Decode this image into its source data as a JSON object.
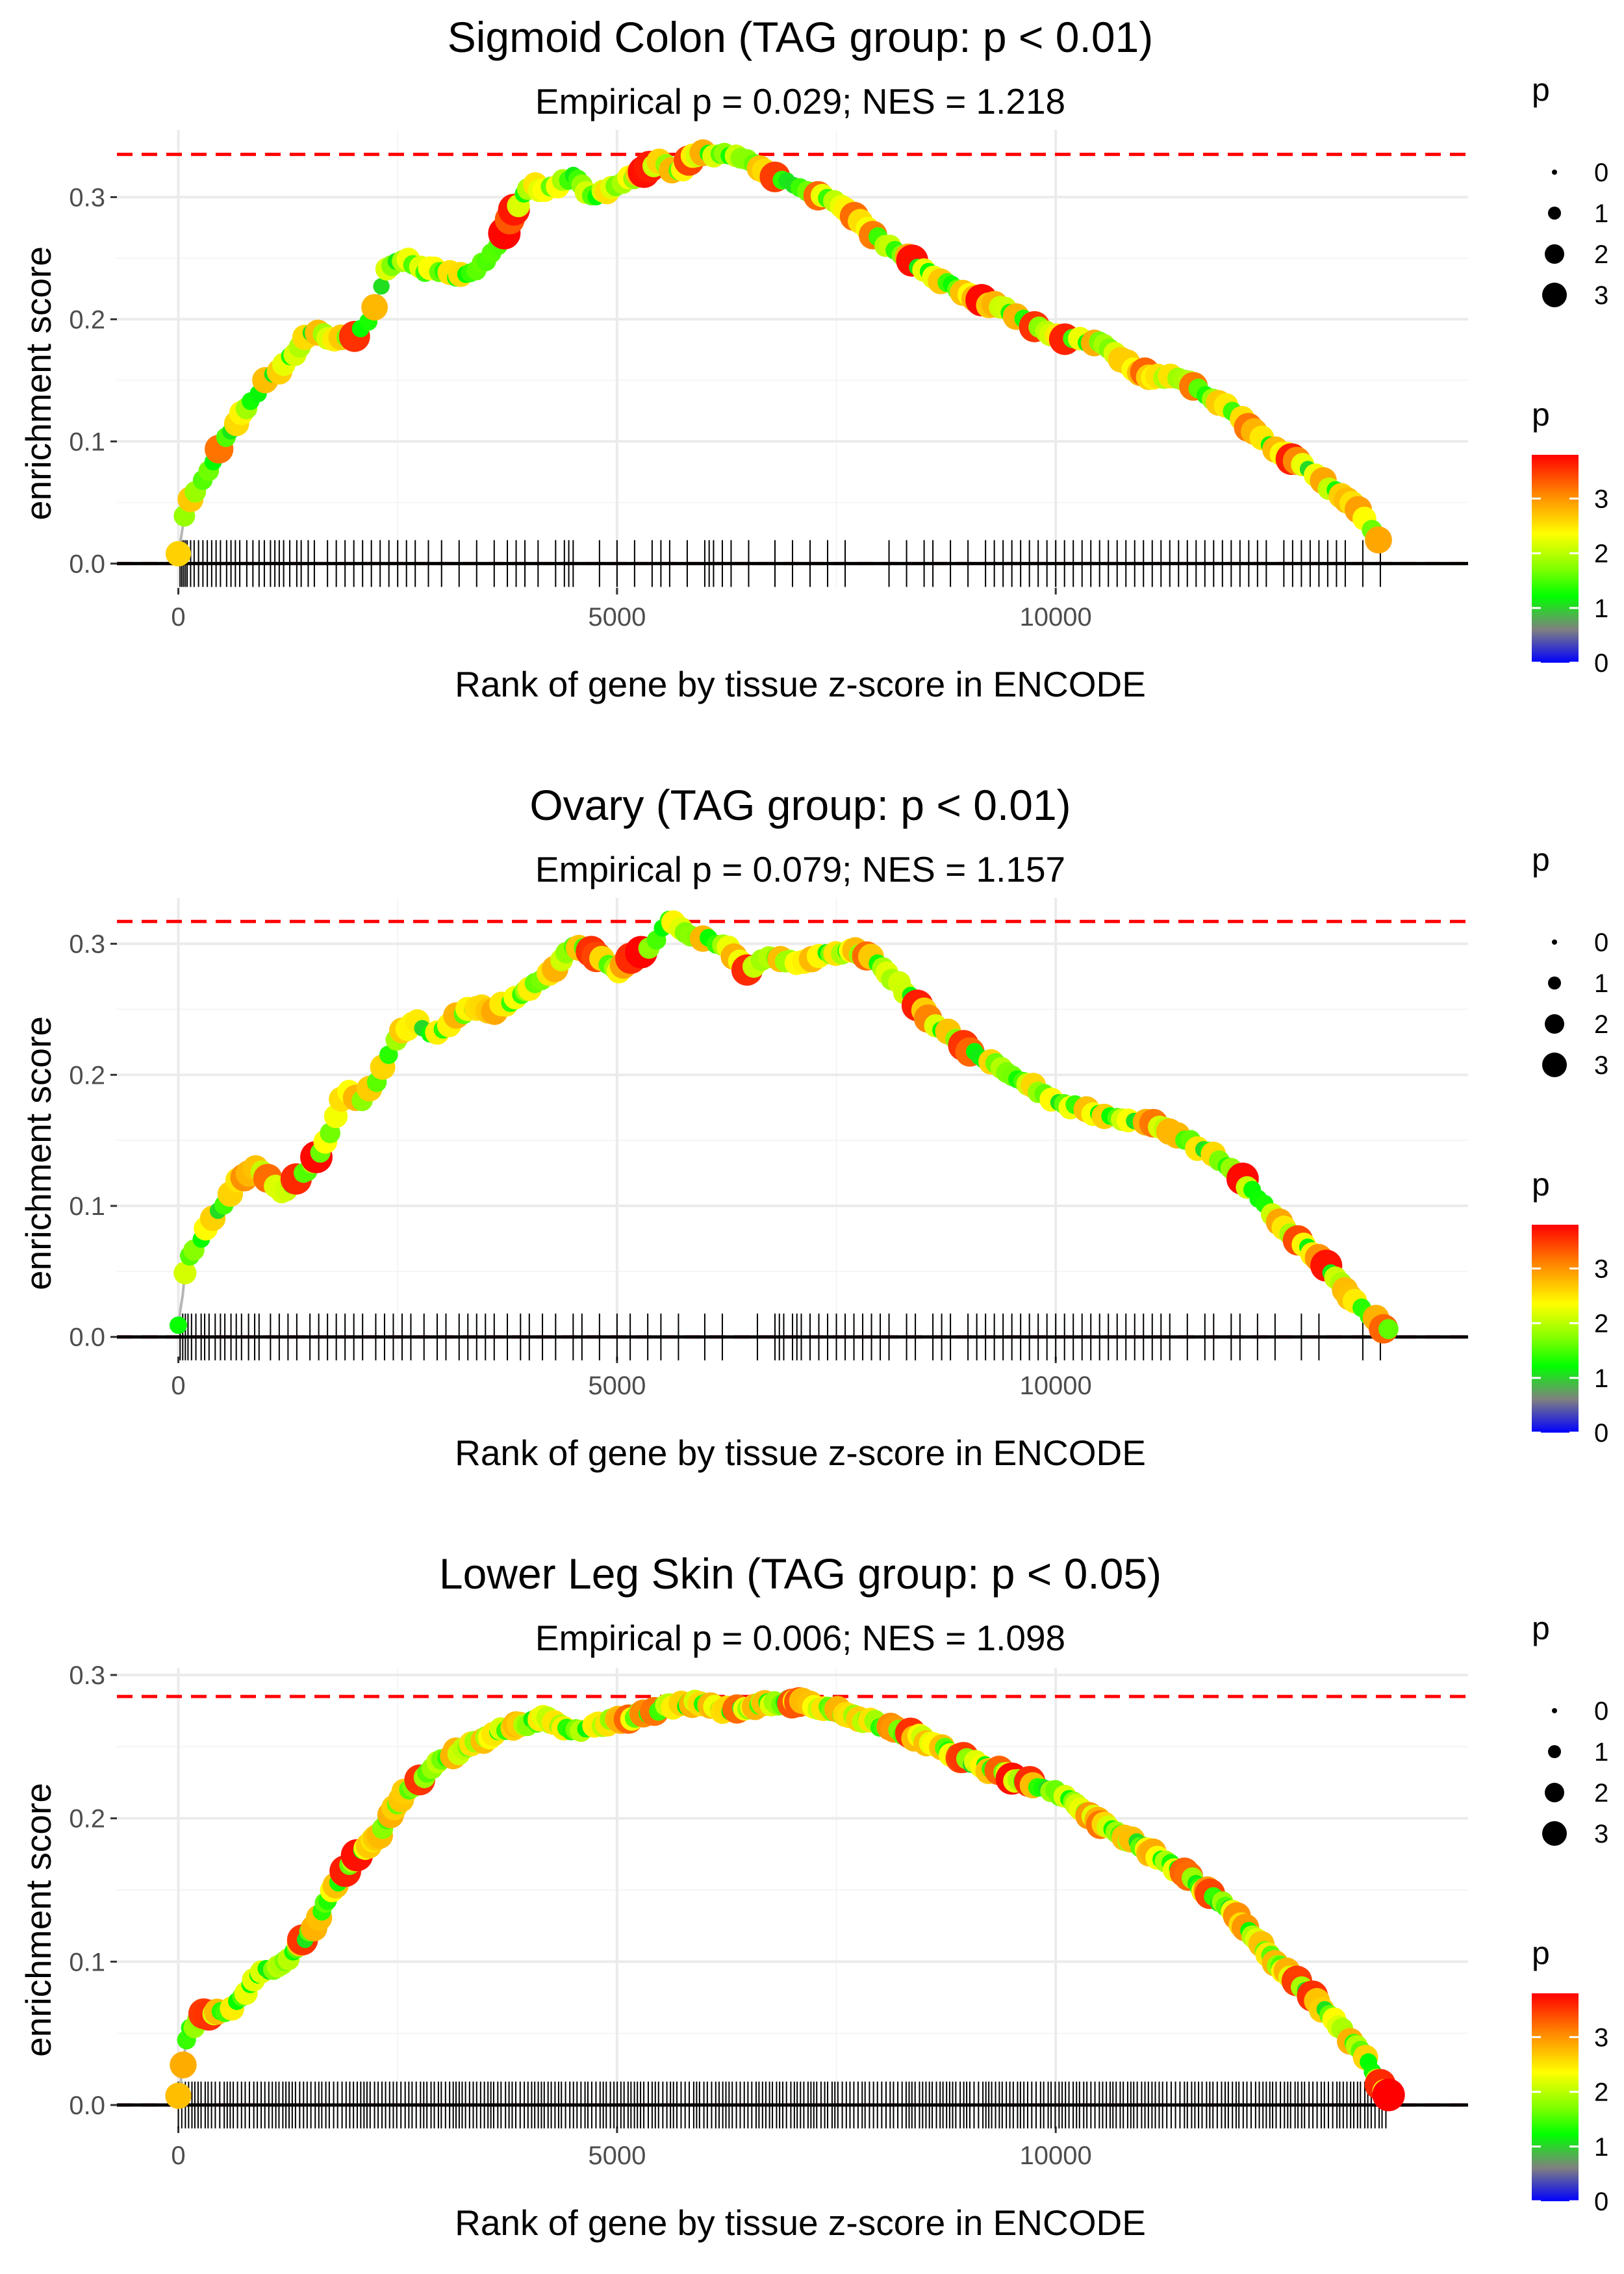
{
  "chart_data": [
    {
      "type": "line",
      "title": "Sigmoid Colon (TAG group: p < 0.01)",
      "subtitle": "Empirical p = 0.029; NES = 1.218",
      "xlabel": "Rank of gene by tissue z-score in ENCODE",
      "ylabel": "enrichment score",
      "xlim": [
        -700,
        14700
      ],
      "ylim": [
        -0.02,
        0.355
      ],
      "x_ticks": [
        0,
        5000,
        10000
      ],
      "x_tick_labels": [
        "0",
        "5000",
        "10000"
      ],
      "y_ticks": [
        0.0,
        0.1,
        0.2,
        0.3
      ],
      "y_tick_labels": [
        "0.0",
        "0.1",
        "0.2",
        "0.3"
      ],
      "max_es": 0.335,
      "n_genes": 13700,
      "curve": [
        [
          0,
          0.01
        ],
        [
          100,
          0.05
        ],
        [
          300,
          0.07
        ],
        [
          600,
          0.11
        ],
        [
          1000,
          0.15
        ],
        [
          1100,
          0.155
        ],
        [
          1300,
          0.17
        ],
        [
          1500,
          0.19
        ],
        [
          1700,
          0.185
        ],
        [
          2000,
          0.185
        ],
        [
          2200,
          0.2
        ],
        [
          2400,
          0.245
        ],
        [
          2600,
          0.25
        ],
        [
          2800,
          0.24
        ],
        [
          3000,
          0.24
        ],
        [
          3200,
          0.235
        ],
        [
          3400,
          0.24
        ],
        [
          3600,
          0.255
        ],
        [
          3800,
          0.285
        ],
        [
          4000,
          0.31
        ],
        [
          4200,
          0.305
        ],
        [
          4500,
          0.318
        ],
        [
          4700,
          0.3
        ],
        [
          5000,
          0.31
        ],
        [
          5300,
          0.32
        ],
        [
          5500,
          0.33
        ],
        [
          5700,
          0.32
        ],
        [
          5900,
          0.335
        ],
        [
          6200,
          0.335
        ],
        [
          6500,
          0.33
        ],
        [
          6700,
          0.32
        ],
        [
          7000,
          0.31
        ],
        [
          7500,
          0.295
        ],
        [
          8000,
          0.265
        ],
        [
          8500,
          0.24
        ],
        [
          9000,
          0.22
        ],
        [
          9500,
          0.205
        ],
        [
          10000,
          0.185
        ],
        [
          10500,
          0.18
        ],
        [
          11000,
          0.155
        ],
        [
          11500,
          0.15
        ],
        [
          12000,
          0.125
        ],
        [
          12500,
          0.095
        ],
        [
          13000,
          0.07
        ],
        [
          13500,
          0.04
        ],
        [
          13750,
          0.01
        ]
      ],
      "hit_ranks": [
        20,
        40,
        60,
        80,
        100,
        140,
        180,
        230,
        280,
        330,
        380,
        430,
        480,
        550,
        600,
        650,
        700,
        780,
        850,
        920,
        980,
        1050,
        1100,
        1150,
        1200,
        1270,
        1350,
        1400,
        1480,
        1550,
        1700,
        1800,
        1900,
        2000,
        2100,
        2200,
        2300,
        2400,
        2500,
        2600,
        2700,
        2850,
        3000,
        3200,
        3400,
        3600,
        3750,
        3850,
        3950,
        4100,
        4300,
        4400,
        4450,
        4500,
        4800,
        5000,
        5200,
        5400,
        5500,
        5600,
        5800,
        6000,
        6050,
        6100,
        6200,
        6300,
        6500,
        6800,
        7000,
        7200,
        7400,
        7600,
        8100,
        8300,
        8500,
        8600,
        8800,
        9000,
        9200,
        9300,
        9400,
        9500,
        9600,
        9700,
        9800,
        9900,
        10000,
        10100,
        10200,
        10300,
        10400,
        10500,
        10600,
        10700,
        10800,
        10900,
        11000,
        11100,
        11200,
        11300,
        11400,
        11500,
        11600,
        11700,
        11800,
        11900,
        12000,
        12100,
        12200,
        12300,
        12400,
        12600,
        12700,
        12800,
        12900,
        13000,
        13100,
        13200,
        13300,
        13500,
        13700
      ]
    },
    {
      "type": "line",
      "title": "Ovary (TAG group: p < 0.01)",
      "subtitle": "Empirical p = 0.079; NES = 1.157",
      "xlabel": "Rank of gene by tissue z-score in ENCODE",
      "ylabel": "enrichment score",
      "xlim": [
        -700,
        14700
      ],
      "ylim": [
        -0.015,
        0.335
      ],
      "x_ticks": [
        0,
        5000,
        10000
      ],
      "x_tick_labels": [
        "0",
        "5000",
        "10000"
      ],
      "y_ticks": [
        0.0,
        0.1,
        0.2,
        0.3
      ],
      "y_tick_labels": [
        "0.0",
        "0.1",
        "0.2",
        "0.3"
      ],
      "max_es": 0.317,
      "n_genes": 13800,
      "curve": [
        [
          0,
          0.01
        ],
        [
          100,
          0.06
        ],
        [
          300,
          0.08
        ],
        [
          500,
          0.1
        ],
        [
          700,
          0.12
        ],
        [
          900,
          0.13
        ],
        [
          1200,
          0.11
        ],
        [
          1500,
          0.13
        ],
        [
          1700,
          0.15
        ],
        [
          1900,
          0.19
        ],
        [
          2100,
          0.18
        ],
        [
          2300,
          0.2
        ],
        [
          2500,
          0.23
        ],
        [
          2700,
          0.24
        ],
        [
          2900,
          0.23
        ],
        [
          3100,
          0.24
        ],
        [
          3300,
          0.25
        ],
        [
          3600,
          0.25
        ],
        [
          3900,
          0.26
        ],
        [
          4100,
          0.27
        ],
        [
          4300,
          0.28
        ],
        [
          4500,
          0.3
        ],
        [
          4700,
          0.295
        ],
        [
          5000,
          0.28
        ],
        [
          5200,
          0.29
        ],
        [
          5400,
          0.3
        ],
        [
          5600,
          0.317
        ],
        [
          5900,
          0.305
        ],
        [
          6200,
          0.3
        ],
        [
          6500,
          0.28
        ],
        [
          6700,
          0.29
        ],
        [
          7000,
          0.285
        ],
        [
          7300,
          0.29
        ],
        [
          7600,
          0.295
        ],
        [
          7900,
          0.29
        ],
        [
          8200,
          0.27
        ],
        [
          8600,
          0.24
        ],
        [
          9000,
          0.22
        ],
        [
          9500,
          0.2
        ],
        [
          10000,
          0.18
        ],
        [
          10500,
          0.17
        ],
        [
          11000,
          0.165
        ],
        [
          11500,
          0.15
        ],
        [
          12000,
          0.13
        ],
        [
          12500,
          0.09
        ],
        [
          13000,
          0.06
        ],
        [
          13500,
          0.02
        ],
        [
          13800,
          0.005
        ]
      ],
      "hit_ranks": [
        20,
        50,
        80,
        110,
        150,
        200,
        260,
        300,
        350,
        420,
        480,
        530,
        600,
        660,
        720,
        800,
        870,
        920,
        1050,
        1150,
        1250,
        1350,
        1500,
        1600,
        1700,
        1800,
        1900,
        2000,
        2100,
        2250,
        2350,
        2450,
        2550,
        2650,
        2800,
        2950,
        3050,
        3200,
        3300,
        3400,
        3500,
        3600,
        3750,
        3900,
        4000,
        4150,
        4300,
        4500,
        4600,
        4800,
        5000,
        5150,
        5350,
        5500,
        5700,
        6000,
        6200,
        6600,
        6800,
        6850,
        6900,
        7000,
        7050,
        7100,
        7200,
        7300,
        7400,
        7500,
        7600,
        7700,
        7800,
        7900,
        8000,
        8100,
        8300,
        8400,
        8600,
        8700,
        8800,
        9000,
        9100,
        9200,
        9300,
        9400,
        9500,
        9600,
        9700,
        9800,
        9900,
        10000,
        10100,
        10200,
        10300,
        10400,
        10500,
        10600,
        10700,
        10800,
        10900,
        11000,
        11100,
        11200,
        11300,
        11500,
        11700,
        11800,
        12000,
        12100,
        12300,
        12500,
        12800,
        13000,
        13500,
        13700
      ]
    },
    {
      "type": "line",
      "title": "Lower Leg Skin (TAG group: p < 0.05)",
      "subtitle": "Empirical p = 0.006; NES = 1.098",
      "xlabel": "Rank of gene by tissue z-score in ENCODE",
      "ylabel": "enrichment score",
      "xlim": [
        -700,
        14700
      ],
      "ylim": [
        -0.015,
        0.305
      ],
      "x_ticks": [
        0,
        5000,
        10000
      ],
      "x_tick_labels": [
        "0",
        "5000",
        "10000"
      ],
      "y_ticks": [
        0.0,
        0.1,
        0.2,
        0.3
      ],
      "y_tick_labels": [
        "0.0",
        "0.1",
        "0.2",
        "0.3"
      ],
      "max_es": 0.285,
      "n_genes": 13800,
      "curve": [
        [
          0,
          0.005
        ],
        [
          100,
          0.05
        ],
        [
          300,
          0.063
        ],
        [
          600,
          0.065
        ],
        [
          900,
          0.09
        ],
        [
          1200,
          0.1
        ],
        [
          1500,
          0.12
        ],
        [
          1800,
          0.155
        ],
        [
          2000,
          0.17
        ],
        [
          2300,
          0.19
        ],
        [
          2600,
          0.22
        ],
        [
          3000,
          0.24
        ],
        [
          3300,
          0.25
        ],
        [
          3600,
          0.26
        ],
        [
          3900,
          0.265
        ],
        [
          4200,
          0.27
        ],
        [
          4500,
          0.26
        ],
        [
          4800,
          0.265
        ],
        [
          5100,
          0.27
        ],
        [
          5400,
          0.275
        ],
        [
          5700,
          0.28
        ],
        [
          6000,
          0.28
        ],
        [
          6300,
          0.275
        ],
        [
          6700,
          0.28
        ],
        [
          7000,
          0.282
        ],
        [
          7500,
          0.275
        ],
        [
          8000,
          0.265
        ],
        [
          8500,
          0.255
        ],
        [
          9000,
          0.24
        ],
        [
          9500,
          0.228
        ],
        [
          10000,
          0.218
        ],
        [
          10500,
          0.197
        ],
        [
          11000,
          0.18
        ],
        [
          11500,
          0.16
        ],
        [
          12000,
          0.135
        ],
        [
          12500,
          0.1
        ],
        [
          13000,
          0.07
        ],
        [
          13500,
          0.035
        ],
        [
          13800,
          0.005
        ]
      ],
      "hit_ranks": "dense"
    }
  ],
  "legend": {
    "size_title": "p",
    "size_labels": [
      "0",
      "1",
      "2",
      "3"
    ],
    "color_title": "p",
    "color_labels": [
      "3",
      "2",
      "1",
      "0"
    ],
    "gradient_colors": [
      "#ff0000",
      "#ff8000",
      "#ffff00",
      "#7fff00",
      "#00ff00",
      "#808080",
      "#0000ff"
    ]
  },
  "colors": {
    "curve": "#b5b5b5",
    "max_line": "#ff0000",
    "zero_line": "#000000",
    "hits": "#000000",
    "grid": "#ebebeb"
  }
}
